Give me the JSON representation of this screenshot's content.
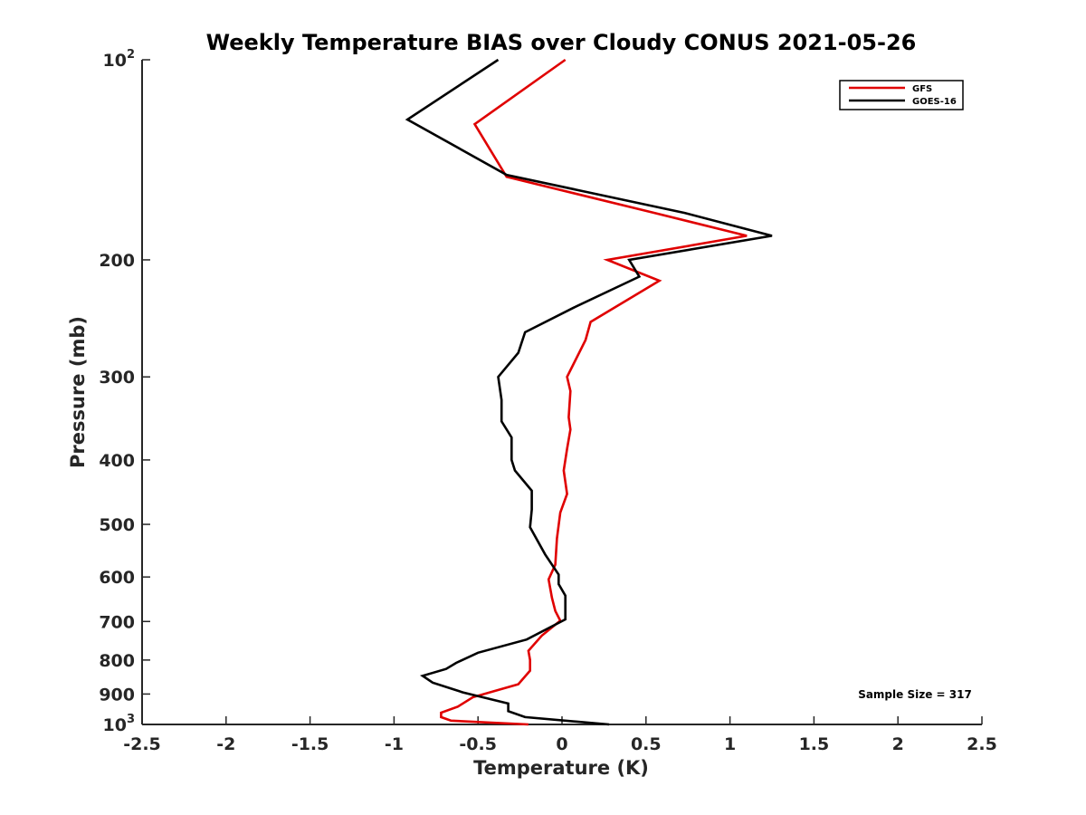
{
  "chart_data": {
    "type": "line",
    "title": "Weekly Temperature BIAS over Cloudy CONUS 2021-05-26",
    "xlabel": "Temperature (K)",
    "ylabel": "Pressure (mb)",
    "xlim": [
      -2.5,
      2.5
    ],
    "ylim": [
      100,
      1000
    ],
    "yscale": "log",
    "yreversed": true,
    "xticks": [
      -2.5,
      -2,
      -1.5,
      -1,
      -0.5,
      0,
      0.5,
      1,
      1.5,
      2,
      2.5
    ],
    "xtick_labels": [
      "-2.5",
      "-2",
      "-1.5",
      "-1",
      "-0.5",
      "0",
      "0.5",
      "1",
      "1.5",
      "2",
      "2.5"
    ],
    "yticks": [
      {
        "value": 100,
        "base": "10",
        "exp": "2"
      },
      {
        "value": 200,
        "label": "200"
      },
      {
        "value": 300,
        "label": "300"
      },
      {
        "value": 400,
        "label": "400"
      },
      {
        "value": 500,
        "label": "500"
      },
      {
        "value": 600,
        "label": "600"
      },
      {
        "value": 700,
        "label": "700"
      },
      {
        "value": 800,
        "label": "800"
      },
      {
        "value": 900,
        "label": "900"
      },
      {
        "value": 1000,
        "base": "10",
        "exp": "3"
      }
    ],
    "grid": false,
    "legend_position": "top-right",
    "annotation": "Sample Size = 317",
    "series": [
      {
        "name": "GFS",
        "color": "#e00000",
        "points": [
          [
            0.02,
            100
          ],
          [
            -0.52,
            125
          ],
          [
            -0.33,
            150
          ],
          [
            0.55,
            170
          ],
          [
            1.1,
            184
          ],
          [
            0.27,
            200
          ],
          [
            0.58,
            215
          ],
          [
            0.17,
            248
          ],
          [
            0.14,
            264
          ],
          [
            0.03,
            300
          ],
          [
            0.05,
            315
          ],
          [
            0.04,
            345
          ],
          [
            0.05,
            360
          ],
          [
            0.03,
            385
          ],
          [
            0.01,
            415
          ],
          [
            0.03,
            450
          ],
          [
            -0.01,
            480
          ],
          [
            -0.03,
            525
          ],
          [
            -0.04,
            575
          ],
          [
            -0.08,
            605
          ],
          [
            -0.06,
            645
          ],
          [
            -0.04,
            675
          ],
          [
            -0.01,
            698
          ],
          [
            -0.12,
            735
          ],
          [
            -0.2,
            775
          ],
          [
            -0.19,
            800
          ],
          [
            -0.19,
            830
          ],
          [
            -0.26,
            870
          ],
          [
            -0.53,
            910
          ],
          [
            -0.62,
            940
          ],
          [
            -0.72,
            960
          ],
          [
            -0.72,
            975
          ],
          [
            -0.66,
            987
          ],
          [
            -0.2,
            1000
          ]
        ]
      },
      {
        "name": "GOES-16",
        "color": "#000000",
        "points": [
          [
            -0.38,
            100
          ],
          [
            -0.92,
            123
          ],
          [
            -0.33,
            149
          ],
          [
            0.73,
            170
          ],
          [
            1.25,
            184
          ],
          [
            0.4,
            200
          ],
          [
            0.46,
            212
          ],
          [
            0.07,
            236
          ],
          [
            -0.22,
            257
          ],
          [
            -0.26,
            276
          ],
          [
            -0.38,
            300
          ],
          [
            -0.36,
            325
          ],
          [
            -0.36,
            350
          ],
          [
            -0.3,
            370
          ],
          [
            -0.3,
            400
          ],
          [
            -0.28,
            415
          ],
          [
            -0.18,
            445
          ],
          [
            -0.18,
            475
          ],
          [
            -0.19,
            505
          ],
          [
            -0.1,
            555
          ],
          [
            -0.02,
            595
          ],
          [
            -0.02,
            615
          ],
          [
            0.02,
            640
          ],
          [
            0.02,
            665
          ],
          [
            0.02,
            695
          ],
          [
            -0.21,
            745
          ],
          [
            -0.5,
            780
          ],
          [
            -0.63,
            808
          ],
          [
            -0.69,
            825
          ],
          [
            -0.83,
            845
          ],
          [
            -0.77,
            865
          ],
          [
            -0.59,
            895
          ],
          [
            -0.32,
            930
          ],
          [
            -0.32,
            955
          ],
          [
            -0.22,
            975
          ],
          [
            0.28,
            1000
          ]
        ]
      }
    ]
  }
}
